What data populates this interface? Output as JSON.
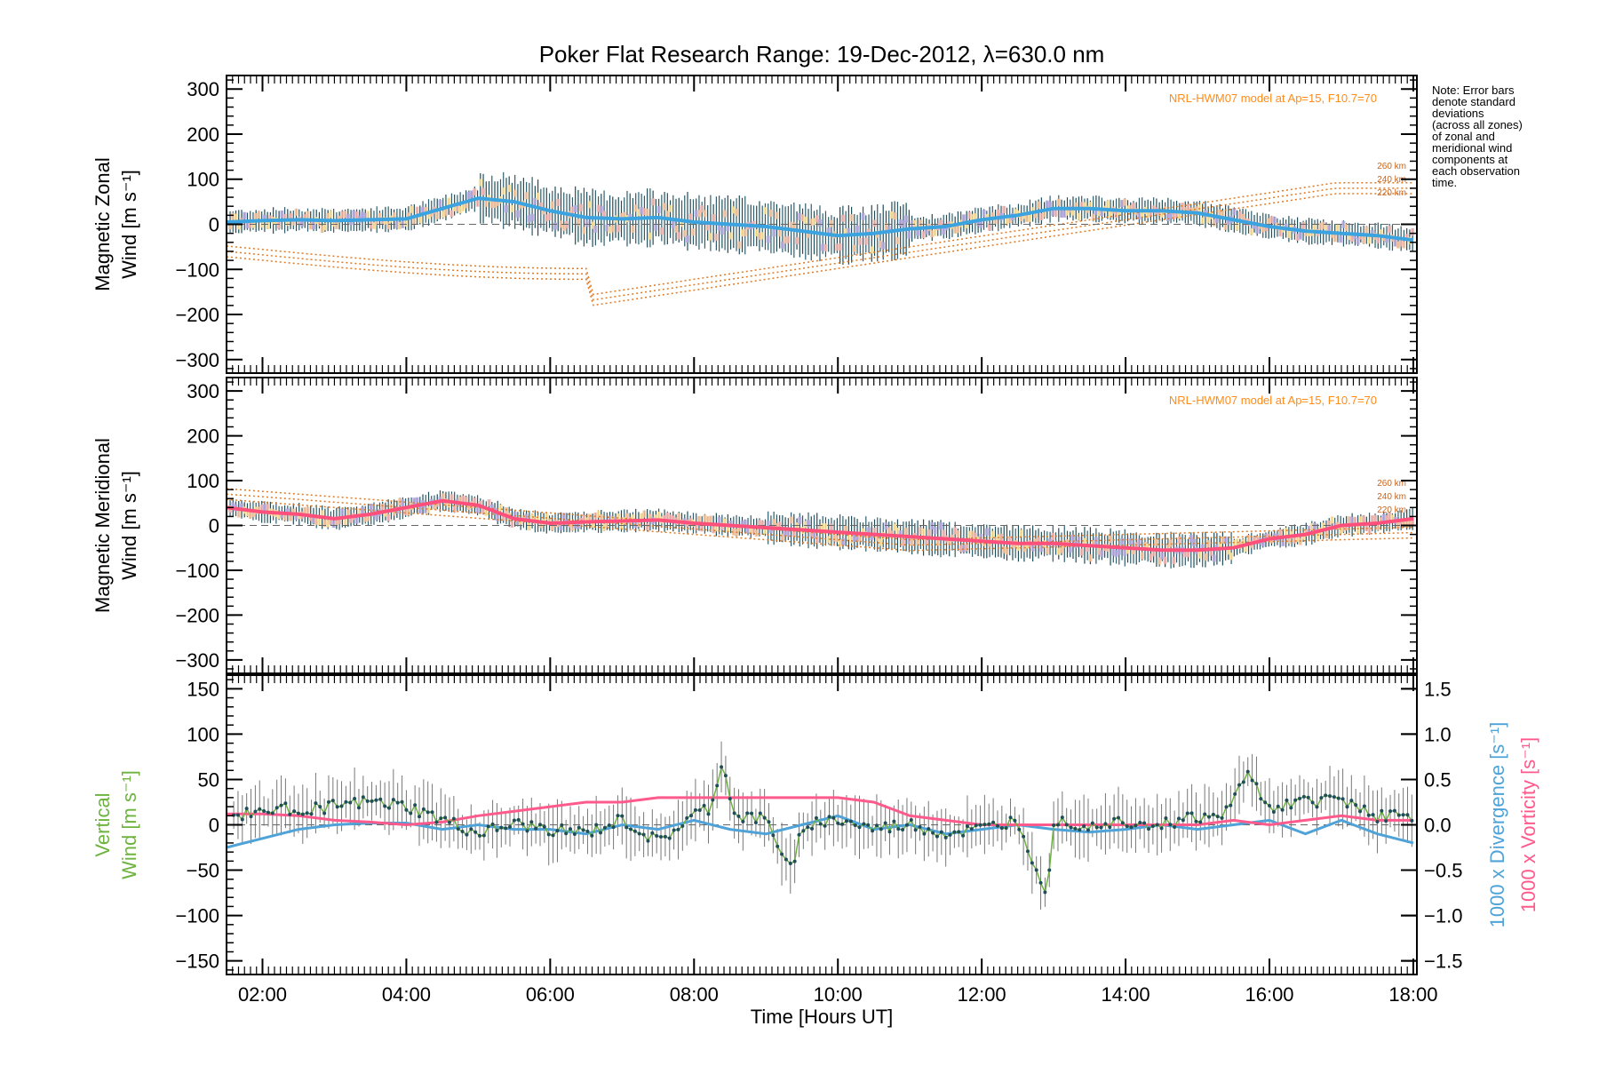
{
  "chart_data": [
    {
      "type": "line",
      "title": "Poker Flat Research Range: 19-Dec-2012, λ=630.0 nm",
      "ylabel_line1": "Magnetic Zonal",
      "ylabel_line2": "Wind [m s⁻¹]",
      "ylim": [
        -330,
        330
      ],
      "yticks": [
        -300,
        -200,
        -100,
        0,
        100,
        200,
        300
      ],
      "annotation": "NRL-HWM07 model at Ap=15, F10.7=70",
      "model_altitudes": [
        "260 km",
        "240 km",
        "220 km"
      ],
      "series": [
        {
          "x": [
            1.5,
            2.0,
            2.5,
            3.0,
            3.5,
            4.0,
            4.5,
            5.0,
            5.5,
            6.0,
            6.5,
            7.0,
            7.5,
            8.0,
            8.5,
            9.0,
            9.5,
            10.0,
            10.5,
            11.0,
            11.5,
            12.0,
            12.5,
            13.0,
            13.5,
            14.0,
            14.5,
            15.0,
            15.5,
            16.0,
            16.5,
            17.0,
            17.5,
            18.0
          ],
          "values": [
            5,
            8,
            10,
            8,
            10,
            12,
            35,
            58,
            50,
            30,
            15,
            12,
            15,
            5,
            0,
            -5,
            -15,
            -25,
            -20,
            -10,
            -5,
            10,
            20,
            35,
            35,
            30,
            30,
            25,
            10,
            -5,
            -15,
            -20,
            -25,
            -35
          ],
          "color": "#3ba4e0"
        }
      ]
    },
    {
      "type": "line",
      "ylabel_line1": "Magnetic Meridional",
      "ylabel_line2": "Wind [m s⁻¹]",
      "ylim": [
        -330,
        330
      ],
      "yticks": [
        -300,
        -200,
        -100,
        0,
        100,
        200,
        300
      ],
      "annotation": "NRL-HWM07 model at Ap=15, F10.7=70",
      "model_altitudes": [
        "260 km",
        "240 km",
        "220 km"
      ],
      "series": [
        {
          "x": [
            1.5,
            2.0,
            2.5,
            3.0,
            3.5,
            4.0,
            4.5,
            5.0,
            5.5,
            6.0,
            6.5,
            7.0,
            7.5,
            8.0,
            8.5,
            9.0,
            9.5,
            10.0,
            10.5,
            11.0,
            11.5,
            12.0,
            12.5,
            13.0,
            13.5,
            14.0,
            14.5,
            15.0,
            15.5,
            16.0,
            16.5,
            17.0,
            17.5,
            18.0
          ],
          "values": [
            40,
            30,
            25,
            15,
            25,
            40,
            55,
            45,
            15,
            5,
            8,
            10,
            12,
            5,
            0,
            -5,
            -10,
            -15,
            -20,
            -25,
            -30,
            -35,
            -40,
            -40,
            -45,
            -50,
            -55,
            -55,
            -50,
            -30,
            -20,
            0,
            5,
            15
          ],
          "color": "#ff4f7b"
        }
      ]
    },
    {
      "type": "line",
      "xlabel": "Time [Hours UT]",
      "xticks": [
        "02:00",
        "04:00",
        "06:00",
        "08:00",
        "10:00",
        "12:00",
        "14:00",
        "16:00",
        "18:00"
      ],
      "xlim": [
        1.5,
        18.05
      ],
      "ylabel_line1": "Vertical",
      "ylabel_line2": "Wind [m s⁻¹]",
      "ylim": [
        -165,
        165
      ],
      "yticks": [
        -150,
        -100,
        -50,
        0,
        50,
        100,
        150
      ],
      "y2label_a": "1000 x Divergence [s⁻¹]",
      "y2label_b": "1000 x Vorticity [s⁻¹]",
      "y2lim": [
        -1.65,
        1.65
      ],
      "y2ticks": [
        "-1.5",
        "-1.0",
        "-0.5",
        "0.0",
        "0.5",
        "1.0",
        "1.5"
      ],
      "series": [
        {
          "name": "Vertical wind",
          "x": [
            1.5,
            2.0,
            2.5,
            3.0,
            3.5,
            4.0,
            4.5,
            5.0,
            5.5,
            6.0,
            6.5,
            7.0,
            7.5,
            8.0,
            8.25,
            8.4,
            8.55,
            9.0,
            9.35,
            9.5,
            10.0,
            10.5,
            11.0,
            11.5,
            12.0,
            12.5,
            12.9,
            13.0,
            13.5,
            14.0,
            14.5,
            15.0,
            15.3,
            15.7,
            16.0,
            16.5,
            17.0,
            17.5,
            18.0
          ],
          "values": [
            10,
            15,
            18,
            20,
            25,
            20,
            5,
            -10,
            0,
            -5,
            -10,
            5,
            -20,
            10,
            20,
            75,
            10,
            5,
            -50,
            0,
            5,
            -5,
            0,
            -10,
            -5,
            5,
            -75,
            5,
            0,
            5,
            0,
            10,
            5,
            55,
            20,
            25,
            30,
            10,
            10
          ],
          "color": "#6db33f"
        },
        {
          "name": "Divergence",
          "x": [
            1.5,
            2.0,
            2.5,
            3.0,
            3.5,
            4.0,
            4.5,
            5.0,
            5.5,
            6.0,
            6.5,
            7.0,
            7.5,
            8.0,
            8.5,
            9.0,
            9.5,
            10.0,
            10.5,
            11.0,
            11.5,
            12.0,
            12.5,
            13.0,
            13.5,
            14.0,
            14.5,
            15.0,
            15.5,
            16.0,
            16.5,
            17.0,
            17.5,
            18.0
          ],
          "values": [
            -0.25,
            -0.15,
            -0.05,
            0.0,
            0.02,
            0.02,
            -0.05,
            0.0,
            -0.05,
            -0.05,
            -0.1,
            0.0,
            -0.05,
            0.05,
            -0.05,
            -0.1,
            0.0,
            0.1,
            -0.05,
            0.0,
            -0.1,
            -0.05,
            0.0,
            -0.05,
            -0.08,
            -0.05,
            0.0,
            -0.05,
            0.0,
            0.05,
            -0.1,
            0.05,
            -0.1,
            -0.2
          ],
          "color": "#4fa3d8"
        },
        {
          "name": "Vorticity",
          "x": [
            1.5,
            2.0,
            2.5,
            3.0,
            3.5,
            4.0,
            4.5,
            5.0,
            5.5,
            6.0,
            6.5,
            7.0,
            7.5,
            8.0,
            8.5,
            9.0,
            9.5,
            10.0,
            10.5,
            11.0,
            11.5,
            12.0,
            12.5,
            13.0,
            13.5,
            14.0,
            14.5,
            15.0,
            15.5,
            16.0,
            16.5,
            17.0,
            17.5,
            18.0
          ],
          "values": [
            0.12,
            0.12,
            0.1,
            0.05,
            0.03,
            0.0,
            0.03,
            0.1,
            0.15,
            0.2,
            0.25,
            0.25,
            0.3,
            0.3,
            0.3,
            0.3,
            0.3,
            0.3,
            0.25,
            0.1,
            0.05,
            0.0,
            0.0,
            0.0,
            0.0,
            0.0,
            0.0,
            0.0,
            0.05,
            0.0,
            0.05,
            0.1,
            0.05,
            0.05
          ],
          "color": "#ff5a8c"
        }
      ]
    }
  ],
  "note": [
    "Note: Error bars",
    "denote standard",
    "deviations",
    "(across all zones)",
    "of zonal and",
    "meridional wind",
    "components at",
    "each observation",
    "time."
  ]
}
